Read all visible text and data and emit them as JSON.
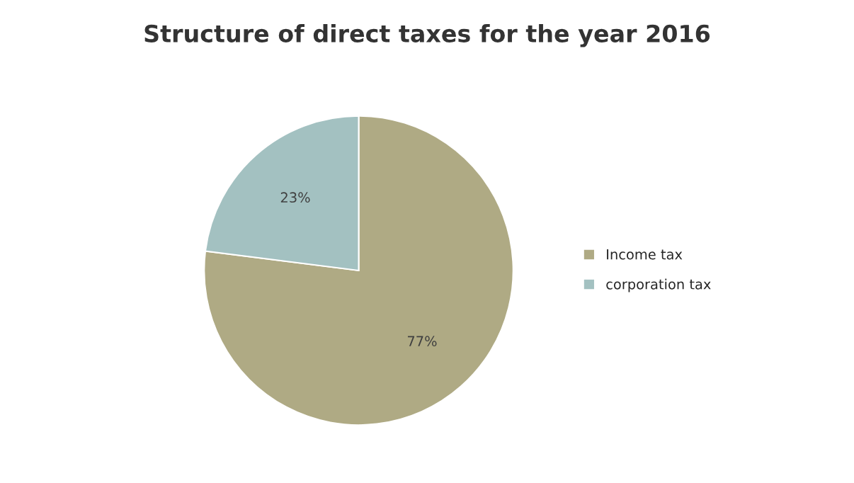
{
  "chart_data": {
    "type": "pie",
    "title": "Structure of direct taxes for the year 2016",
    "categories": [
      "Income tax",
      "corporation tax"
    ],
    "values": [
      77,
      23
    ],
    "colors": [
      "#afaa84",
      "#a3c1c1"
    ],
    "value_labels": [
      "77%",
      "23%"
    ],
    "legend": "right"
  }
}
